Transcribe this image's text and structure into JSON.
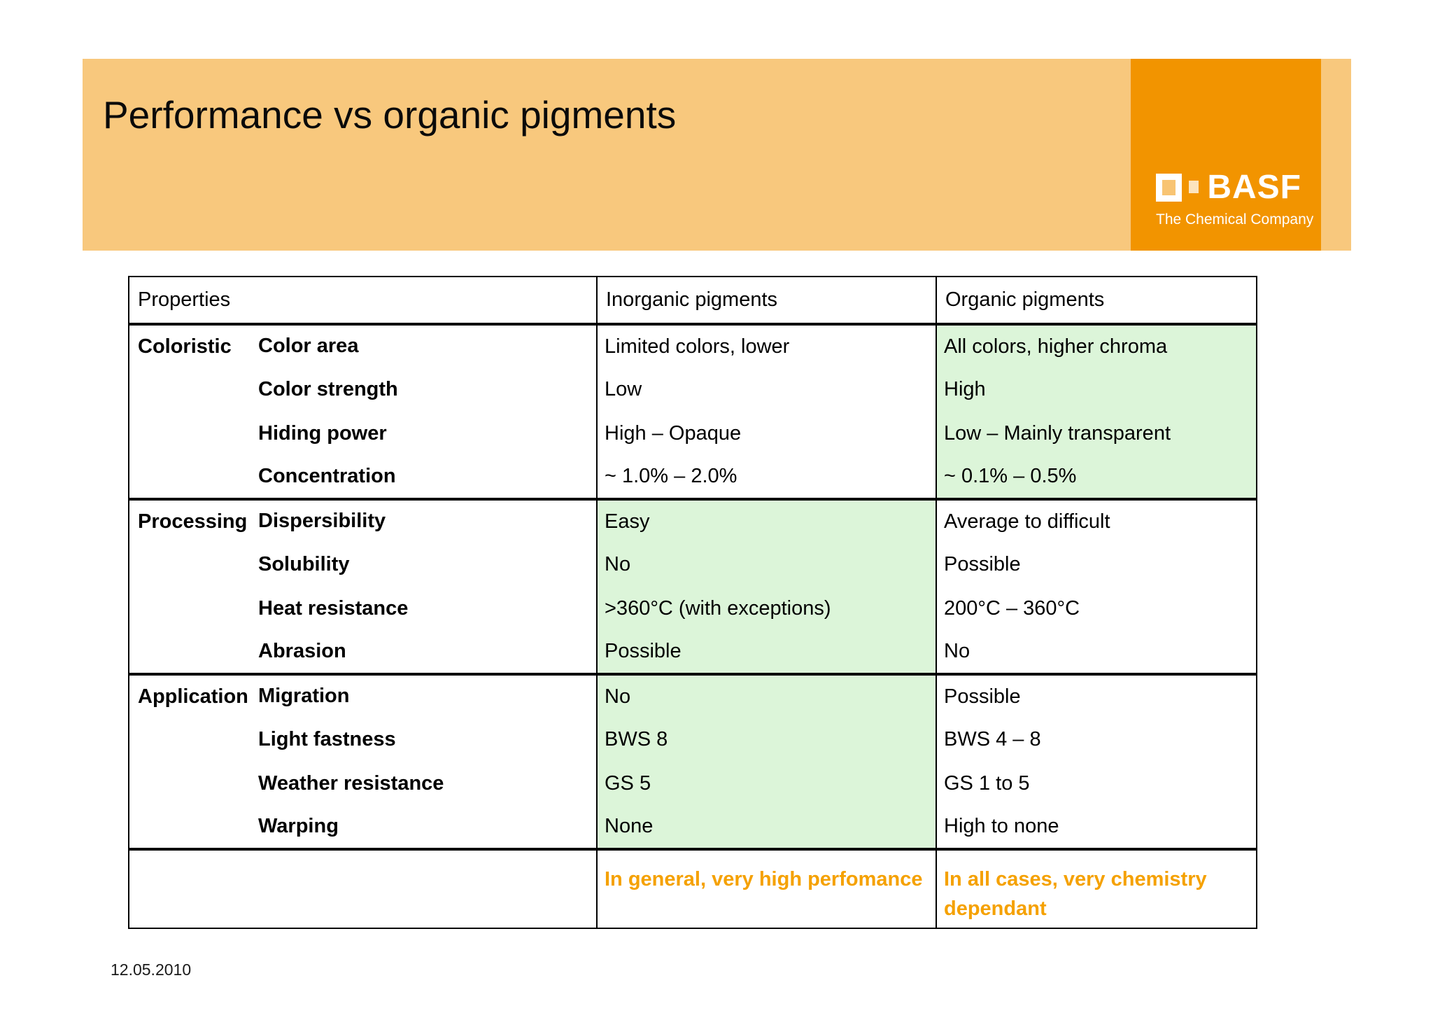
{
  "slide": {
    "title": "Performance vs organic pigments",
    "footer_date": "12.05.2010"
  },
  "logo": {
    "brand": "BASF",
    "caption": "The Chemical Company",
    "brand_orange": "#F29400",
    "banner_orange": "#F8C87D"
  },
  "table": {
    "headers": [
      "Properties",
      "Inorganic pigments",
      "Organic pigments"
    ],
    "highlight_green": "#DCF5D9",
    "summary_orange": "#F5A100",
    "sections": [
      {
        "category": "Coloristic",
        "highlight": "organic",
        "rows": [
          {
            "property": "Color area",
            "inorganic": "Limited colors, lower",
            "organic": "All colors, higher chroma"
          },
          {
            "property": "Color strength",
            "inorganic": "Low",
            "organic": "High"
          },
          {
            "property": "Hiding power",
            "inorganic": "High – Opaque",
            "organic": "Low – Mainly transparent"
          },
          {
            "property": "Concentration",
            "inorganic": "~ 1.0% – 2.0%",
            "organic": "~ 0.1% – 0.5%"
          }
        ]
      },
      {
        "category": "Processing",
        "highlight": "inorganic",
        "rows": [
          {
            "property": "Dispersibility",
            "inorganic": "Easy",
            "organic": "Average to difficult"
          },
          {
            "property": "Solubility",
            "inorganic": "No",
            "organic": "Possible"
          },
          {
            "property": "Heat resistance",
            "inorganic": ">360°C (with exceptions)",
            "organic": "200°C – 360°C"
          },
          {
            "property": "Abrasion",
            "inorganic": "Possible",
            "organic": "No"
          }
        ]
      },
      {
        "category": "Application",
        "highlight": "inorganic",
        "rows": [
          {
            "property": "Migration",
            "inorganic": "No",
            "organic": "Possible"
          },
          {
            "property": "Light fastness",
            "inorganic": "BWS 8",
            "organic": "BWS 4 – 8"
          },
          {
            "property": "Weather resistance",
            "inorganic": "GS 5",
            "organic": "GS 1 to 5"
          },
          {
            "property": "Warping",
            "inorganic": "None",
            "organic": "High to none"
          }
        ]
      }
    ],
    "summary": {
      "inorganic": "In general, very high perfomance",
      "organic": "In all cases, very chemistry dependant"
    }
  }
}
